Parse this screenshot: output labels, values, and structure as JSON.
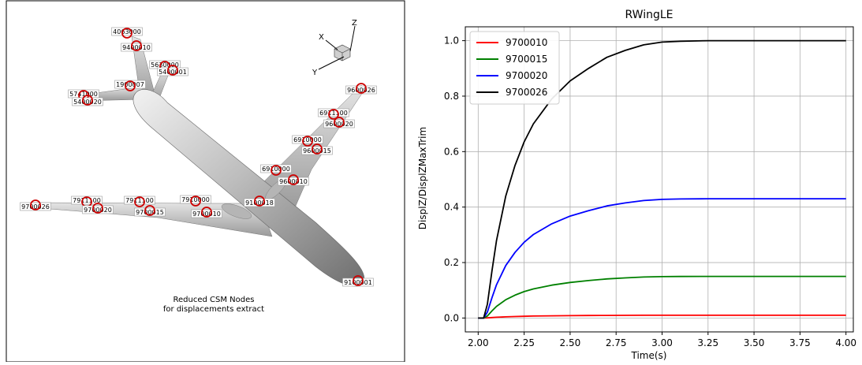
{
  "aircraft_view": {
    "caption_line1": "Reduced CSM Nodes",
    "caption_line2": "for displacements extract",
    "axis_labels": {
      "x": "X",
      "y": "Y",
      "z": "Z"
    },
    "node_labels": [
      "4063000",
      "9400010",
      "5630000",
      "5400001",
      "1900007",
      "5741000",
      "5400020",
      "9600026",
      "6911100",
      "9600020",
      "6910000",
      "9600015",
      "6910000",
      "9600010",
      "9100018",
      "9700026",
      "7911100",
      "9700020",
      "7911100",
      "9700015",
      "7910000",
      "9700010",
      "9100001"
    ],
    "colors": {
      "node_circle": "#cc0000",
      "fuselage": "#a8a8a8"
    }
  },
  "chart_data": {
    "type": "line",
    "title": "RWingLE",
    "xlabel": "Time(s)",
    "ylabel": "DisplZ/DisplZMaxTrim",
    "xlim": [
      1.93,
      4.04
    ],
    "ylim": [
      -0.05,
      1.05
    ],
    "xticks": [
      "2.00",
      "2.25",
      "2.50",
      "2.75",
      "3.00",
      "3.25",
      "3.50",
      "3.75",
      "4.00"
    ],
    "yticks": [
      "0.0",
      "0.2",
      "0.4",
      "0.6",
      "0.8",
      "1.0"
    ],
    "grid": true,
    "legend_position": "top-left",
    "series": [
      {
        "name": "9700010",
        "color": "#ff0000",
        "final": 0.01
      },
      {
        "name": "9700015",
        "color": "#008000",
        "final": 0.15
      },
      {
        "name": "9700020",
        "color": "#0000ff",
        "final": 0.43
      },
      {
        "name": "9700026",
        "color": "#000000",
        "final": 1.0
      }
    ],
    "x": [
      2.0,
      2.03,
      2.05,
      2.075,
      2.1,
      2.15,
      2.2,
      2.25,
      2.3,
      2.4,
      2.5,
      2.6,
      2.7,
      2.8,
      2.9,
      3.0,
      3.1,
      3.25,
      3.5,
      3.75,
      4.0
    ],
    "response_shape": [
      0,
      0,
      0.05,
      0.17,
      0.28,
      0.44,
      0.55,
      0.635,
      0.7,
      0.79,
      0.855,
      0.9,
      0.94,
      0.965,
      0.985,
      0.995,
      0.998,
      1.0,
      1.0,
      1.0,
      1.0
    ]
  }
}
